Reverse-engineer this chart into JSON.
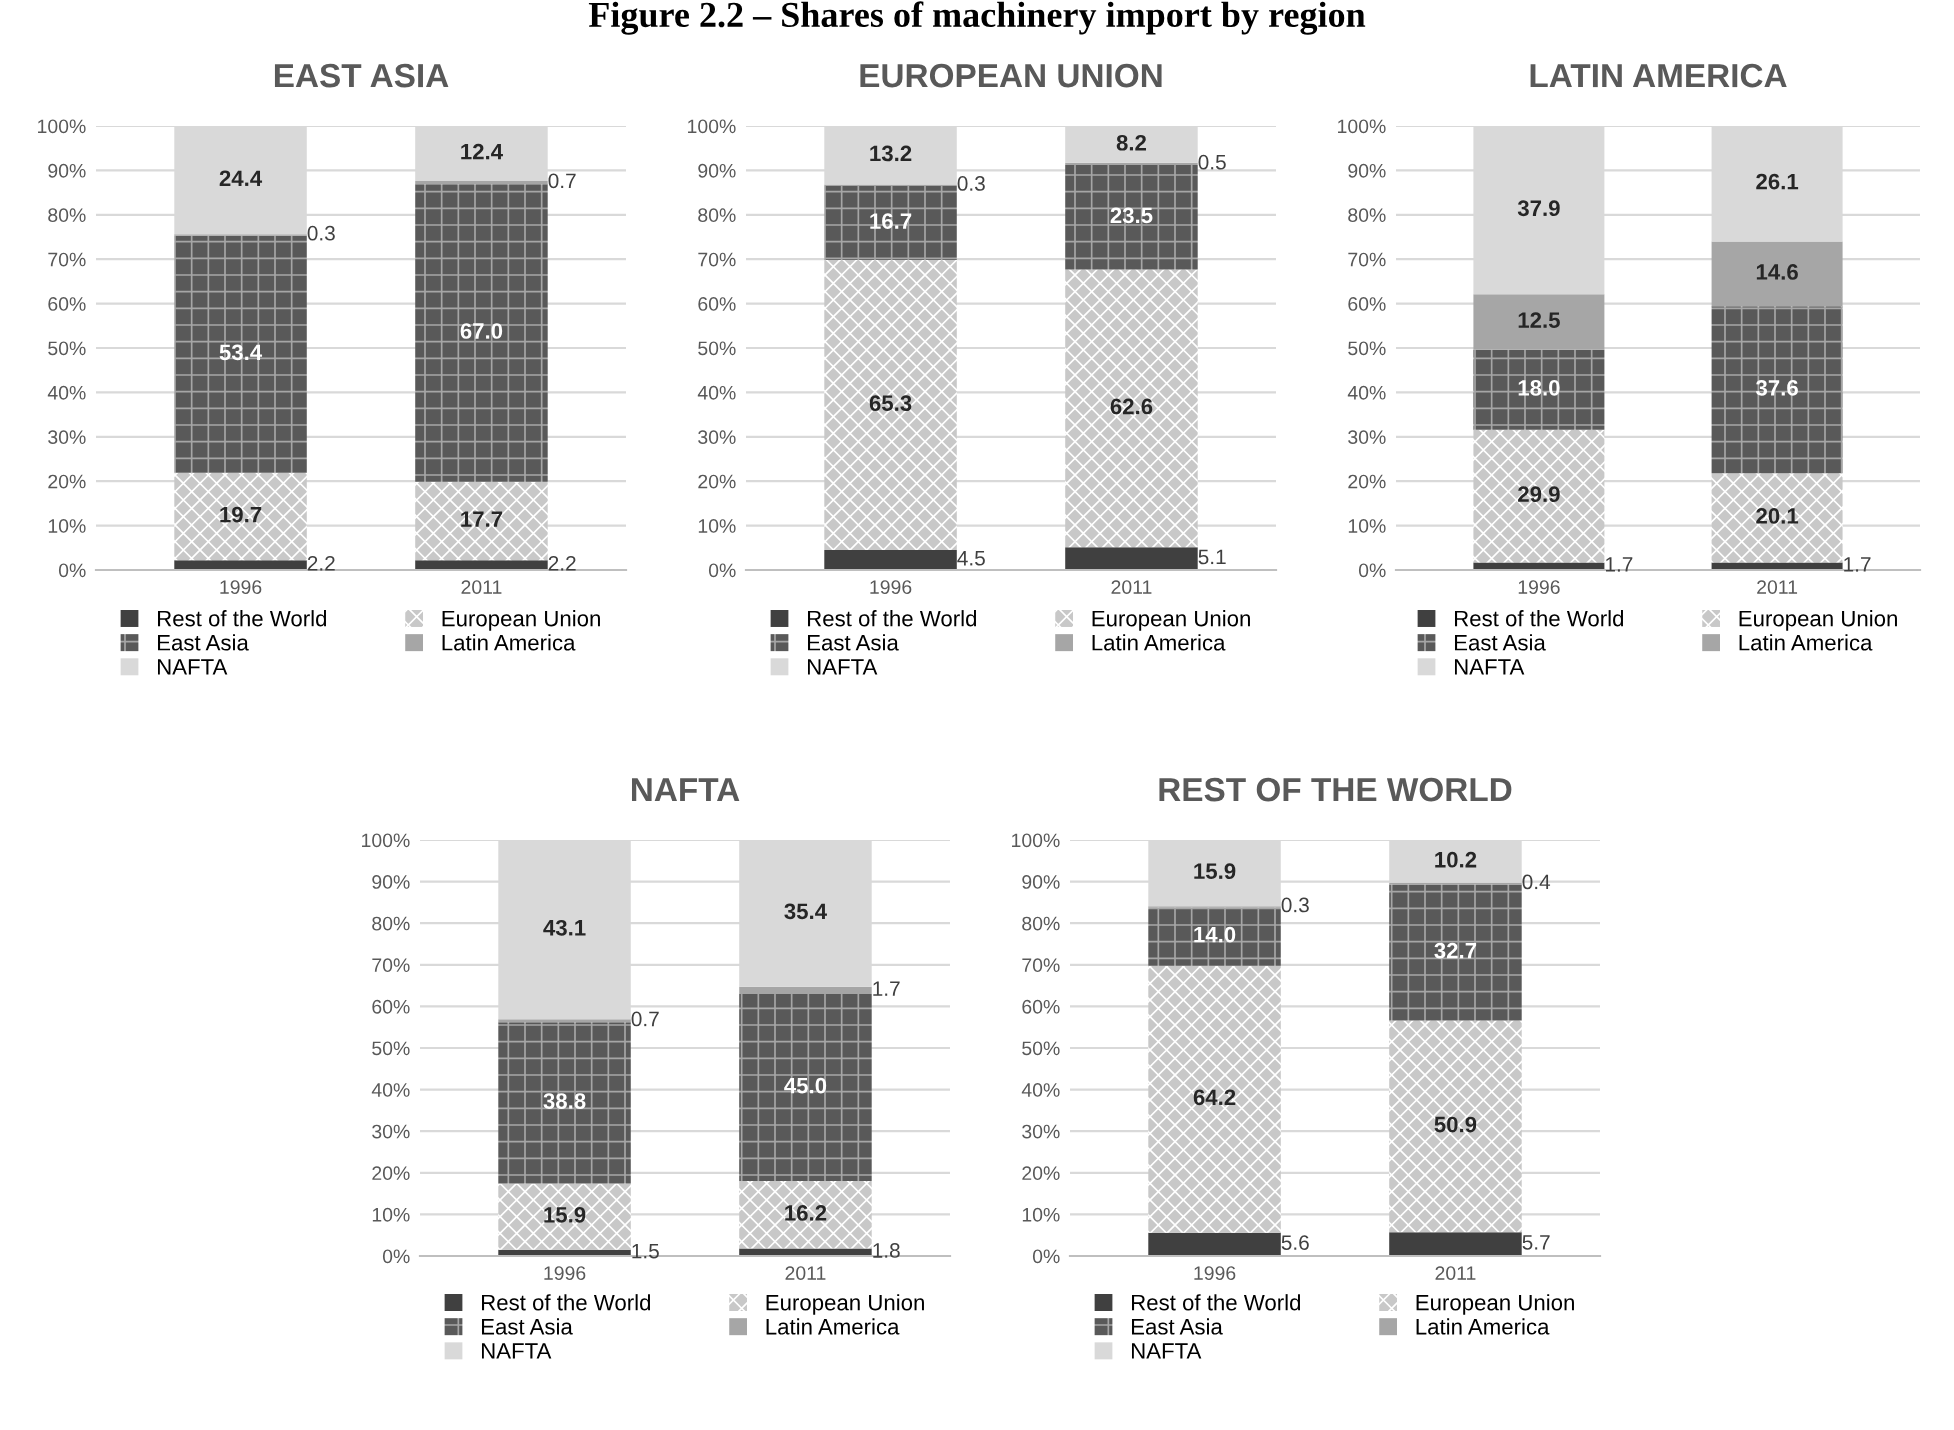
{
  "chart_data": [
    {
      "type": "bar",
      "title": "EAST ASIA",
      "stacked": true,
      "categories": [
        "1996",
        "2011"
      ],
      "ylim": [
        0,
        100
      ],
      "yticks": [
        {
          "value": 0,
          "label": "0%"
        },
        {
          "value": 10,
          "label": "10%"
        },
        {
          "value": 20,
          "label": "20%"
        },
        {
          "value": 30,
          "label": "30%"
        },
        {
          "value": 40,
          "label": "40%"
        },
        {
          "value": 50,
          "label": "50%"
        },
        {
          "value": 60,
          "label": "60%"
        },
        {
          "value": 70,
          "label": "70%"
        },
        {
          "value": 80,
          "label": "80%"
        },
        {
          "value": 90,
          "label": "90%"
        },
        {
          "value": 100,
          "label": "100%"
        }
      ],
      "grid": "y",
      "legend": "bottom",
      "annotations": [
        "Figure 2.2 – Shares of machinery import by region"
      ],
      "series": [
        {
          "name": "Rest of the World",
          "color": "#404040",
          "values": [
            2.2,
            2.2
          ],
          "value_labels": [
            "2.2",
            "2.2"
          ]
        },
        {
          "name": "European Union",
          "color": "#c8c8c8",
          "values": [
            19.7,
            17.7
          ],
          "value_labels": [
            "19.7",
            "17.7"
          ]
        },
        {
          "name": "East Asia",
          "color": "#595959",
          "values": [
            53.4,
            67.0
          ],
          "value_labels": [
            "53.4",
            "67.0"
          ]
        },
        {
          "name": "Latin America",
          "color": "#a6a6a6",
          "values": [
            0.3,
            0.7
          ],
          "value_labels": [
            "0.3",
            "0.7"
          ]
        },
        {
          "name": "NAFTA",
          "color": "#d9d9d9",
          "values": [
            24.4,
            12.4
          ],
          "value_labels": [
            "24.4",
            "12.4"
          ]
        }
      ]
    },
    {
      "type": "bar",
      "title": "EUROPEAN UNION",
      "stacked": true,
      "categories": [
        "1996",
        "2011"
      ],
      "ylim": [
        0,
        100
      ],
      "yticks": [
        {
          "value": 0,
          "label": "0%"
        },
        {
          "value": 10,
          "label": "10%"
        },
        {
          "value": 20,
          "label": "20%"
        },
        {
          "value": 30,
          "label": "30%"
        },
        {
          "value": 40,
          "label": "40%"
        },
        {
          "value": 50,
          "label": "50%"
        },
        {
          "value": 60,
          "label": "60%"
        },
        {
          "value": 70,
          "label": "70%"
        },
        {
          "value": 80,
          "label": "80%"
        },
        {
          "value": 90,
          "label": "90%"
        },
        {
          "value": 100,
          "label": "100%"
        }
      ],
      "grid": "y",
      "legend": "bottom",
      "series": [
        {
          "name": "Rest of the World",
          "color": "#404040",
          "values": [
            4.5,
            5.1
          ],
          "value_labels": [
            "4.5",
            "5.1"
          ]
        },
        {
          "name": "European Union",
          "color": "#c8c8c8",
          "values": [
            65.3,
            62.6
          ],
          "value_labels": [
            "65.3",
            "62.6"
          ]
        },
        {
          "name": "East Asia",
          "color": "#595959",
          "values": [
            16.7,
            23.5
          ],
          "value_labels": [
            "16.7",
            "23.5"
          ]
        },
        {
          "name": "Latin America",
          "color": "#a6a6a6",
          "values": [
            0.3,
            0.5
          ],
          "value_labels": [
            "0.3",
            "0.5"
          ]
        },
        {
          "name": "NAFTA",
          "color": "#d9d9d9",
          "values": [
            13.2,
            8.2
          ],
          "value_labels": [
            "13.2",
            "8.2"
          ]
        }
      ]
    },
    {
      "type": "bar",
      "title": "LATIN AMERICA",
      "stacked": true,
      "categories": [
        "1996",
        "2011"
      ],
      "ylim": [
        0,
        100
      ],
      "yticks": [
        {
          "value": 0,
          "label": "0%"
        },
        {
          "value": 10,
          "label": "10%"
        },
        {
          "value": 20,
          "label": "20%"
        },
        {
          "value": 30,
          "label": "30%"
        },
        {
          "value": 40,
          "label": "40%"
        },
        {
          "value": 50,
          "label": "50%"
        },
        {
          "value": 60,
          "label": "60%"
        },
        {
          "value": 70,
          "label": "70%"
        },
        {
          "value": 80,
          "label": "80%"
        },
        {
          "value": 90,
          "label": "90%"
        },
        {
          "value": 100,
          "label": "100%"
        }
      ],
      "grid": "y",
      "legend": "bottom",
      "series": [
        {
          "name": "Rest of the World",
          "color": "#404040",
          "values": [
            1.7,
            1.7
          ],
          "value_labels": [
            "1.7",
            "1.7"
          ]
        },
        {
          "name": "European Union",
          "color": "#c8c8c8",
          "values": [
            29.9,
            20.1
          ],
          "value_labels": [
            "29.9",
            "20.1"
          ]
        },
        {
          "name": "East Asia",
          "color": "#595959",
          "values": [
            18.0,
            37.6
          ],
          "value_labels": [
            "18.0",
            "37.6"
          ]
        },
        {
          "name": "Latin America",
          "color": "#a6a6a6",
          "values": [
            12.5,
            14.6
          ],
          "value_labels": [
            "12.5",
            "14.6"
          ]
        },
        {
          "name": "NAFTA",
          "color": "#d9d9d9",
          "values": [
            37.9,
            26.1
          ],
          "value_labels": [
            "37.9",
            "26.1"
          ]
        }
      ]
    },
    {
      "type": "bar",
      "title": "NAFTA",
      "stacked": true,
      "categories": [
        "1996",
        "2011"
      ],
      "ylim": [
        0,
        100
      ],
      "yticks": [
        {
          "value": 0,
          "label": "0%"
        },
        {
          "value": 10,
          "label": "10%"
        },
        {
          "value": 20,
          "label": "20%"
        },
        {
          "value": 30,
          "label": "30%"
        },
        {
          "value": 40,
          "label": "40%"
        },
        {
          "value": 50,
          "label": "50%"
        },
        {
          "value": 60,
          "label": "60%"
        },
        {
          "value": 70,
          "label": "70%"
        },
        {
          "value": 80,
          "label": "80%"
        },
        {
          "value": 90,
          "label": "90%"
        },
        {
          "value": 100,
          "label": "100%"
        }
      ],
      "grid": "y",
      "legend": "bottom",
      "series": [
        {
          "name": "Rest of the World",
          "color": "#404040",
          "values": [
            1.5,
            1.8
          ],
          "value_labels": [
            "1.5",
            "1.8"
          ]
        },
        {
          "name": "European Union",
          "color": "#c8c8c8",
          "values": [
            15.9,
            16.2
          ],
          "value_labels": [
            "15.9",
            "16.2"
          ]
        },
        {
          "name": "East Asia",
          "color": "#595959",
          "values": [
            38.8,
            45.0
          ],
          "value_labels": [
            "38.8",
            "45.0"
          ]
        },
        {
          "name": "Latin America",
          "color": "#a6a6a6",
          "values": [
            0.7,
            1.7
          ],
          "value_labels": [
            "0.7",
            "1.7"
          ]
        },
        {
          "name": "NAFTA",
          "color": "#d9d9d9",
          "values": [
            43.1,
            35.4
          ],
          "value_labels": [
            "43.1",
            "35.4"
          ]
        }
      ]
    },
    {
      "type": "bar",
      "title": "REST OF THE WORLD",
      "stacked": true,
      "categories": [
        "1996",
        "2011"
      ],
      "ylim": [
        0,
        100
      ],
      "yticks": [
        {
          "value": 0,
          "label": "0%"
        },
        {
          "value": 10,
          "label": "10%"
        },
        {
          "value": 20,
          "label": "20%"
        },
        {
          "value": 30,
          "label": "30%"
        },
        {
          "value": 40,
          "label": "40%"
        },
        {
          "value": 50,
          "label": "50%"
        },
        {
          "value": 60,
          "label": "60%"
        },
        {
          "value": 70,
          "label": "70%"
        },
        {
          "value": 80,
          "label": "80%"
        },
        {
          "value": 90,
          "label": "90%"
        },
        {
          "value": 100,
          "label": "100%"
        }
      ],
      "grid": "y",
      "legend": "bottom",
      "series": [
        {
          "name": "Rest of the World",
          "color": "#404040",
          "values": [
            5.6,
            5.7
          ],
          "value_labels": [
            "5.6",
            "5.7"
          ]
        },
        {
          "name": "European Union",
          "color": "#c8c8c8",
          "values": [
            64.2,
            50.9
          ],
          "value_labels": [
            "64.2",
            "50.9"
          ]
        },
        {
          "name": "East Asia",
          "color": "#595959",
          "values": [
            14.0,
            32.7
          ],
          "value_labels": [
            "14.0",
            "32.7"
          ]
        },
        {
          "name": "Latin America",
          "color": "#a6a6a6",
          "values": [
            0.3,
            0.4
          ],
          "value_labels": [
            "0.3",
            "0.4"
          ]
        },
        {
          "name": "NAFTA",
          "color": "#d9d9d9",
          "values": [
            15.9,
            10.2
          ],
          "value_labels": [
            "15.9",
            "10.2"
          ]
        }
      ]
    }
  ]
}
